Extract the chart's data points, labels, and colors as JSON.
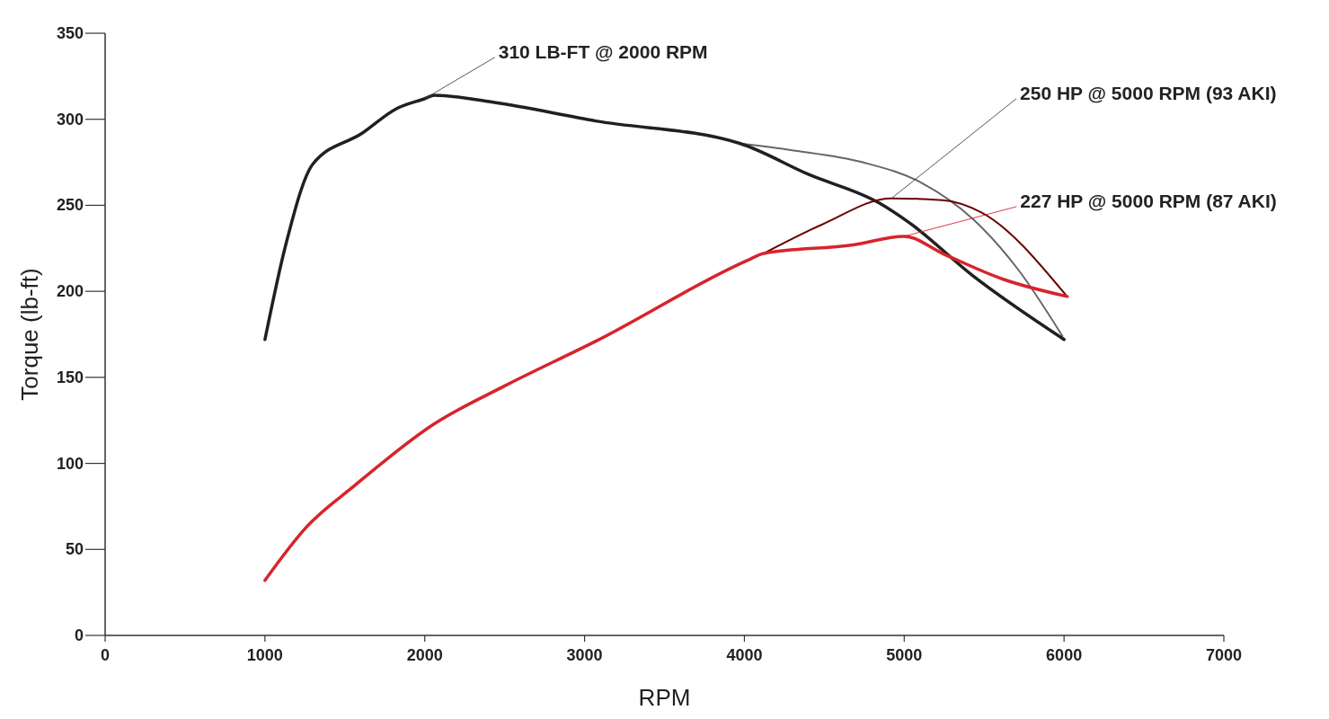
{
  "chart_data": {
    "type": "line",
    "xlabel": "RPM",
    "ylabel": "Torque (lb-ft)",
    "xlim": [
      0,
      7000
    ],
    "xticks": [
      0,
      1000,
      2000,
      3000,
      4000,
      5000,
      6000,
      7000
    ],
    "ylim": [
      0,
      350
    ],
    "yticks": [
      0,
      50,
      100,
      150,
      200,
      250,
      300,
      350
    ],
    "grid": false,
    "series": [
      {
        "color": "#666666",
        "x": [
          3970,
          4300,
          4740,
          5110,
          5430,
          5710,
          5990
        ],
        "values": [
          286,
          282,
          275,
          263,
          242,
          213,
          174
        ]
      },
      {
        "color": "#231f20",
        "x": [
          1000,
          1130,
          1300,
          1610,
          1820,
          2000,
          2060,
          2420,
          3070,
          3970,
          4400,
          4850,
          5030,
          5430,
          6000
        ],
        "values": [
          172,
          227,
          274,
          292,
          306,
          312,
          314,
          310,
          299,
          286,
          268,
          251,
          240,
          209,
          172
        ]
      },
      {
        "color": "#6b0000",
        "x": [
          4120,
          4490,
          4920,
          5240,
          5480,
          6010
        ],
        "values": [
          222,
          239,
          254,
          253,
          246,
          198
        ]
      },
      {
        "color": "#d7242b",
        "x": [
          1000,
          1260,
          1560,
          2060,
          2500,
          3070,
          4020,
          4120,
          4680,
          5000,
          5240,
          5620,
          6020
        ],
        "values": [
          32,
          63,
          87,
          123,
          145,
          171,
          218,
          222,
          227,
          232,
          222,
          207,
          197
        ]
      }
    ],
    "annotations": [
      {
        "text": "310 LB-FT @ 2000 RPM",
        "x": 2000,
        "y": 312
      },
      {
        "text": "250 HP @ 5000 RPM (93 AKI)",
        "x": 4920,
        "y": 254
      },
      {
        "text": "227 HP @ 5000 RPM (87 AKI)",
        "x": 5000,
        "y": 232
      }
    ]
  }
}
